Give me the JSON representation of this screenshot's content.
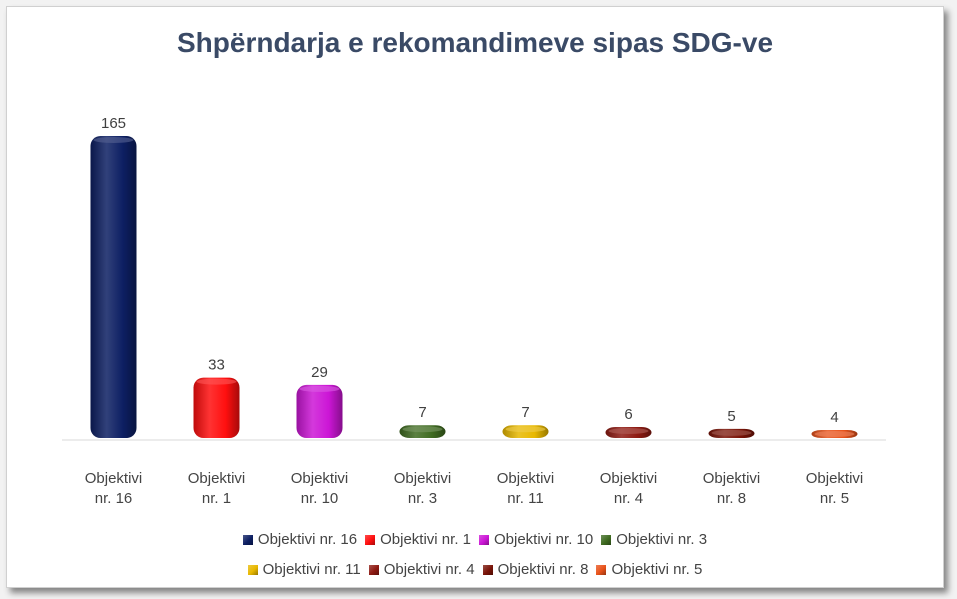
{
  "chart_data": {
    "type": "bar",
    "title": "Shpërndarja e rekomandimeve sipas SDG-ve",
    "categories": [
      [
        "Objektivi",
        "nr. 16"
      ],
      [
        "Objektivi",
        "nr. 1"
      ],
      [
        "Objektivi",
        "nr. 10"
      ],
      [
        "Objektivi",
        "nr. 3"
      ],
      [
        "Objektivi",
        "nr. 11"
      ],
      [
        "Objektivi",
        "nr. 4"
      ],
      [
        "Objektivi",
        "nr. 8"
      ],
      [
        "Objektivi",
        "nr. 5"
      ]
    ],
    "values": [
      165,
      33,
      29,
      7,
      7,
      6,
      5,
      4
    ],
    "colors": [
      "#0d1f63",
      "#ff0f0f",
      "#cc16d6",
      "#3f6b21",
      "#e8b800",
      "#8e1a12",
      "#7a1408",
      "#e8521a"
    ],
    "legend": [
      "Objektivi nr. 16",
      "Objektivi nr. 1",
      "Objektivi nr. 10",
      "Objektivi nr. 3",
      "Objektivi nr. 11",
      "Objektivi nr. 4",
      "Objektivi nr. 8",
      "Objektivi nr. 5"
    ],
    "legend_position": "bottom",
    "grid": false,
    "ylim": [
      0,
      165
    ]
  }
}
